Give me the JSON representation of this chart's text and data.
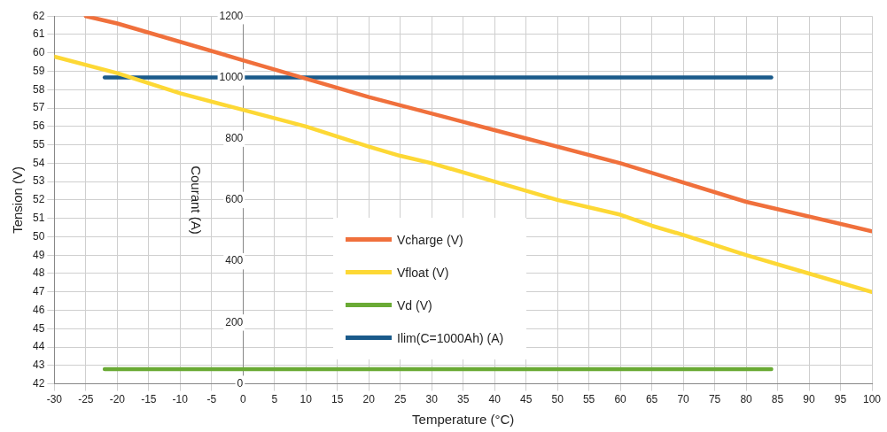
{
  "chart_data": {
    "type": "line",
    "xlabel": "Temperature (°C)",
    "ylabel": "Tension (V)",
    "y2label": "Courant (A)",
    "xlim": [
      -30,
      100
    ],
    "xticks": [
      -30,
      -25,
      -20,
      -15,
      -10,
      -5,
      0,
      5,
      10,
      15,
      20,
      25,
      30,
      35,
      40,
      45,
      50,
      55,
      60,
      65,
      70,
      75,
      80,
      85,
      90,
      95,
      100
    ],
    "ylim": [
      42,
      62
    ],
    "yticks": [
      42,
      43,
      44,
      45,
      46,
      47,
      48,
      49,
      50,
      51,
      52,
      53,
      54,
      55,
      56,
      57,
      58,
      59,
      60,
      61,
      62
    ],
    "y2lim": [
      0,
      1200
    ],
    "y2ticks": [
      0,
      200,
      400,
      600,
      800,
      1000,
      1200
    ],
    "grid": true,
    "legend": "center",
    "line_style": "solid",
    "marker": "none",
    "series": [
      {
        "name": "Vcharge (V)",
        "color": "#f0703c",
        "x": [
          -25,
          -20,
          0,
          20,
          40,
          60,
          80,
          100
        ],
        "values": [
          62,
          61.6,
          59.6,
          57.6,
          55.8,
          54.0,
          51.9,
          50.3
        ]
      },
      {
        "name": "Vfloat (V)",
        "color": "#fdd835",
        "x": [
          -30,
          -20,
          -10,
          0,
          10,
          20,
          25,
          30,
          40,
          50,
          60,
          65,
          70,
          80,
          90,
          100
        ],
        "values": [
          59.8,
          58.9,
          57.8,
          56.9,
          56.0,
          54.9,
          54.4,
          54.0,
          53.0,
          52.0,
          51.2,
          50.6,
          50.1,
          49.0,
          48.0,
          47.0
        ]
      },
      {
        "name": "Vd (V)",
        "color": "#6aaa35",
        "x": [
          -22,
          84
        ],
        "values": [
          42.8,
          42.8
        ]
      },
      {
        "name": "Ilim(C=1000Ah) (A)",
        "color": "#1a5a8a",
        "x": [
          -22,
          84
        ],
        "values": [
          1000,
          1000
        ],
        "axis": "y2"
      }
    ]
  }
}
